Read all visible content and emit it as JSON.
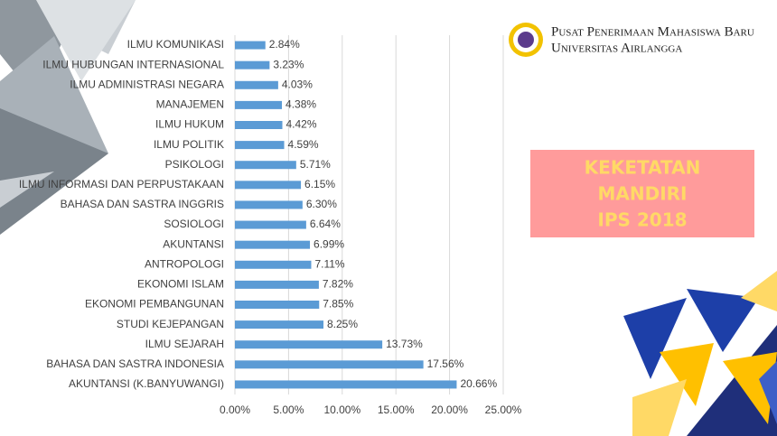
{
  "header": {
    "line1": "Pusat Penerimaan Mahasiswa Baru",
    "line2": "Universitas Airlangga"
  },
  "badge": [
    "KEKETATAN",
    "MANDIRI",
    "IPS 2018"
  ],
  "chart_data": {
    "type": "bar",
    "orientation": "horizontal",
    "color": "#5b9bd5",
    "grid": true,
    "categories": [
      "ILMU KOMUNIKASI",
      "ILMU HUBUNGAN INTERNASIONAL",
      "ILMU ADMINISTRASI NEGARA",
      "MANAJEMEN",
      "ILMU HUKUM",
      "ILMU POLITIK",
      "PSIKOLOGI",
      "ILMU INFORMASI DAN PERPUSTAKAAN",
      "BAHASA DAN SASTRA INGGRIS",
      "SOSIOLOGI",
      "AKUNTANSI",
      "ANTROPOLOGI",
      "EKONOMI ISLAM",
      "EKONOMI PEMBANGUNAN",
      "STUDI KEJEPANGAN",
      "ILMU SEJARAH",
      "BAHASA DAN SASTRA INDONESIA",
      "AKUNTANSI (K.BANYUWANGI)"
    ],
    "values": [
      2.84,
      3.23,
      4.03,
      4.38,
      4.42,
      4.59,
      5.71,
      6.15,
      6.3,
      6.64,
      6.99,
      7.11,
      7.82,
      7.85,
      8.25,
      13.73,
      17.56,
      20.66
    ],
    "value_labels": [
      "2.84%",
      "3.23%",
      "4.03%",
      "4.38%",
      "4.42%",
      "4.59%",
      "5.71%",
      "6.15%",
      "6.30%",
      "6.64%",
      "6.99%",
      "7.11%",
      "7.82%",
      "7.85%",
      "8.25%",
      "13.73%",
      "17.56%",
      "20.66%"
    ],
    "xlim": [
      0,
      25
    ],
    "xticks": [
      {
        "value": 0,
        "label": "0.00%"
      },
      {
        "value": 5,
        "label": "5.00%"
      },
      {
        "value": 10,
        "label": "10.00%"
      },
      {
        "value": 15,
        "label": "15.00%"
      },
      {
        "value": 20,
        "label": "20.00%"
      },
      {
        "value": 25,
        "label": "25.00%"
      }
    ]
  }
}
